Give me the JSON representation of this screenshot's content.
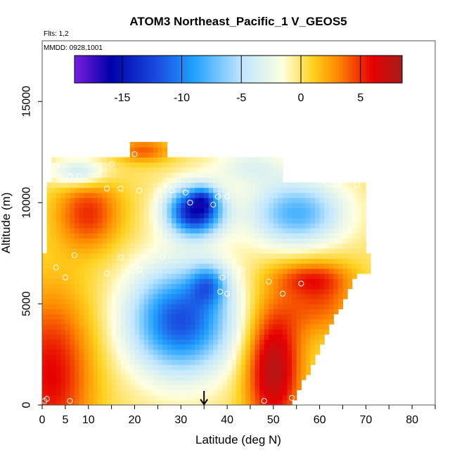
{
  "chart_data": {
    "type": "heatmap",
    "title": "ATOM3 Northeast_Pacific_1 V_GEOS5",
    "subtitle_flights": "Flts: 1,2",
    "subtitle_dates": "MMDD: 0928,1001",
    "xlabel": "Latitude (deg N)",
    "ylabel": "Altitude (m)",
    "xlim": [
      0,
      85
    ],
    "ylim": [
      0,
      18000
    ],
    "x_ticks": [
      0,
      5,
      10,
      20,
      30,
      40,
      50,
      60,
      70,
      80
    ],
    "x_tick_labels": [
      "0",
      "5",
      "10",
      "20",
      "30",
      "40",
      "50",
      "60",
      "70",
      "80"
    ],
    "y_ticks": [
      0,
      5000,
      10000,
      15000
    ],
    "y_tick_labels": [
      "0",
      "5000",
      "10000",
      "15000"
    ],
    "colorbar": {
      "range": [
        -19,
        8.5
      ],
      "ticks": [
        -15,
        -10,
        -5,
        0,
        5
      ],
      "tick_labels": [
        "-15",
        "-10",
        "-5",
        "0",
        "5"
      ],
      "colors": [
        "#7b1fe0",
        "#0000a8",
        "#1a4de0",
        "#21a0ff",
        "#bfe6ff",
        "#ffffe0",
        "#ffd21f",
        "#ff8c00",
        "#e60000",
        "#a51c1c"
      ]
    },
    "value_bands_approx": [
      {
        "region": "near-surface 0-10 N",
        "value": 3
      },
      {
        "region": "upper troposphere 30-40 N, ~10000 m",
        "value": -16
      },
      {
        "region": "mid troposphere 20-45 N, ~5000 m",
        "value": -12
      },
      {
        "region": "lower troposphere 45-55 N",
        "value": 6
      }
    ],
    "sample_points": [
      [
        0.5,
        200
      ],
      [
        1,
        300
      ],
      [
        6,
        200
      ],
      [
        48,
        200
      ],
      [
        54,
        350
      ],
      [
        3,
        6800
      ],
      [
        5,
        6300
      ],
      [
        14,
        6500
      ],
      [
        21,
        6700
      ],
      [
        39,
        6300
      ],
      [
        38.5,
        5600
      ],
      [
        40,
        5500
      ],
      [
        43,
        6700
      ],
      [
        49,
        6100
      ],
      [
        52,
        5500
      ],
      [
        56,
        6000
      ],
      [
        7,
        7400
      ],
      [
        17,
        7300
      ],
      [
        26,
        7300
      ],
      [
        14,
        10700
      ],
      [
        17,
        10700
      ],
      [
        21,
        10600
      ],
      [
        25,
        10600
      ],
      [
        28,
        10600
      ],
      [
        31,
        10500
      ],
      [
        32,
        10000
      ],
      [
        37,
        9900
      ],
      [
        38,
        10300
      ],
      [
        40,
        10300
      ],
      [
        3,
        11800
      ],
      [
        4,
        11200
      ],
      [
        6,
        11300
      ],
      [
        8,
        11300
      ],
      [
        15,
        11900
      ],
      [
        20,
        12400
      ],
      [
        28,
        12700
      ],
      [
        33,
        12400
      ],
      [
        58,
        11200
      ],
      [
        61,
        11100
      ],
      [
        64,
        10900
      ],
      [
        68,
        10900
      ]
    ],
    "marker_latitude": 35,
    "grid": "off"
  }
}
